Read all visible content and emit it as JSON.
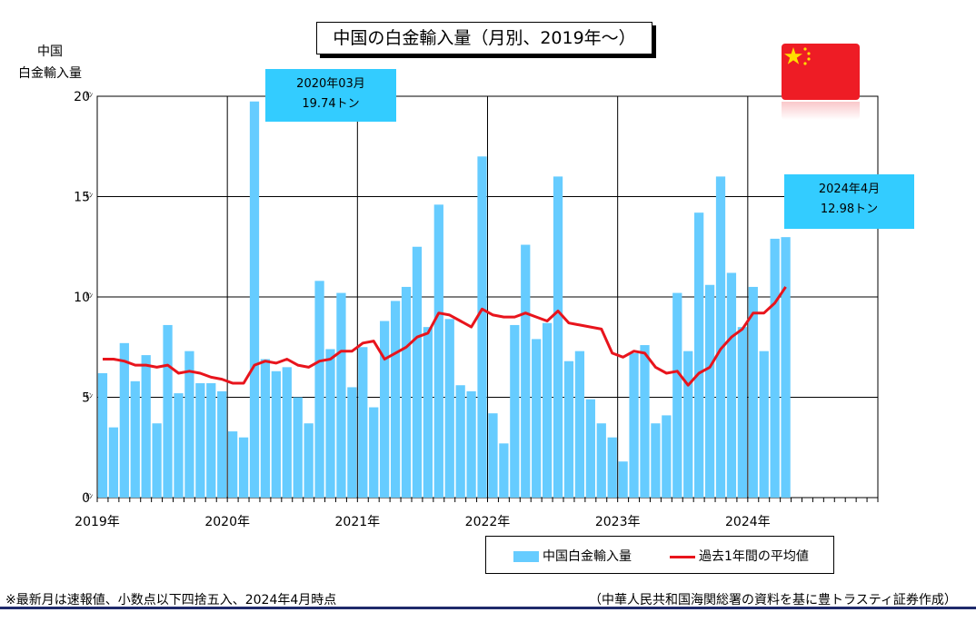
{
  "title": "中国の白金輸入量（月別、2019年～）",
  "y_axis_label_line1": "中国",
  "y_axis_label_line2": "白金輸入量",
  "callout_1": {
    "line1": "2020年03月",
    "line2": "19.74トン"
  },
  "callout_2": {
    "line1": "2024年4月",
    "line2": "12.98トン"
  },
  "legend": {
    "bar_label": "中国白金輸入量",
    "line_label": "過去1年間の平均値"
  },
  "footnote_left": "※最新月は速報値、小数点以下四捨五入、2024年4月時点",
  "footnote_right": "（中華人民共和国海関総署の資料を基に豊トラスティ証券作成）",
  "flag_icon": "china-flag-icon",
  "colors": {
    "bar": "#66ccff",
    "line": "#e8141c",
    "callout": "#33ccff",
    "flag": "#ee1c25",
    "star": "#ffde00"
  },
  "chart_data": {
    "type": "bar",
    "title": "中国の白金輸入量（月別、2019年～）",
    "ylabel": "中国 白金輸入量",
    "y_unit": "ﾄﾝ",
    "ylim": [
      0,
      20
    ],
    "y_ticks": [
      0,
      5,
      10,
      15,
      20
    ],
    "x_tick_labels": [
      "2019年",
      "2020年",
      "2021年",
      "2022年",
      "2023年",
      "2024年"
    ],
    "x_range": "2019-01 to 2024-12",
    "grid": true,
    "legend_position": "bottom",
    "series": [
      {
        "name": "中国白金輸入量",
        "type": "bar",
        "values": [
          6.2,
          3.5,
          7.7,
          5.8,
          7.1,
          3.7,
          8.6,
          5.2,
          7.3,
          5.7,
          5.7,
          5.3,
          3.3,
          3.0,
          19.74,
          6.9,
          6.3,
          6.5,
          5.0,
          3.7,
          10.8,
          7.4,
          10.2,
          5.5,
          7.5,
          4.5,
          8.8,
          9.8,
          10.5,
          12.5,
          8.5,
          14.6,
          8.9,
          5.6,
          5.3,
          17.0,
          4.2,
          2.7,
          8.6,
          12.6,
          7.9,
          8.7,
          16.0,
          6.8,
          7.3,
          4.9,
          3.7,
          3.0,
          1.8,
          7.2,
          7.6,
          3.7,
          4.1,
          10.2,
          7.3,
          14.2,
          10.6,
          16.0,
          11.2,
          8.5,
          10.5,
          7.3,
          12.9,
          12.98
        ]
      },
      {
        "name": "過去1年間の平均値",
        "type": "line",
        "values": [
          6.9,
          6.9,
          6.8,
          6.6,
          6.6,
          6.5,
          6.6,
          6.2,
          6.3,
          6.2,
          6.0,
          5.9,
          5.7,
          5.7,
          6.6,
          6.8,
          6.7,
          6.9,
          6.6,
          6.5,
          6.8,
          6.9,
          7.3,
          7.3,
          7.7,
          7.8,
          6.9,
          7.2,
          7.5,
          8.0,
          8.2,
          9.2,
          9.1,
          8.8,
          8.5,
          9.4,
          9.1,
          9.0,
          9.0,
          9.2,
          9.0,
          8.8,
          9.3,
          8.7,
          8.6,
          8.5,
          8.4,
          7.2,
          7.0,
          7.3,
          7.2,
          6.5,
          6.2,
          6.3,
          5.6,
          6.2,
          6.5,
          7.4,
          8.0,
          8.4,
          9.2,
          9.2,
          9.7,
          10.5
        ]
      }
    ]
  }
}
